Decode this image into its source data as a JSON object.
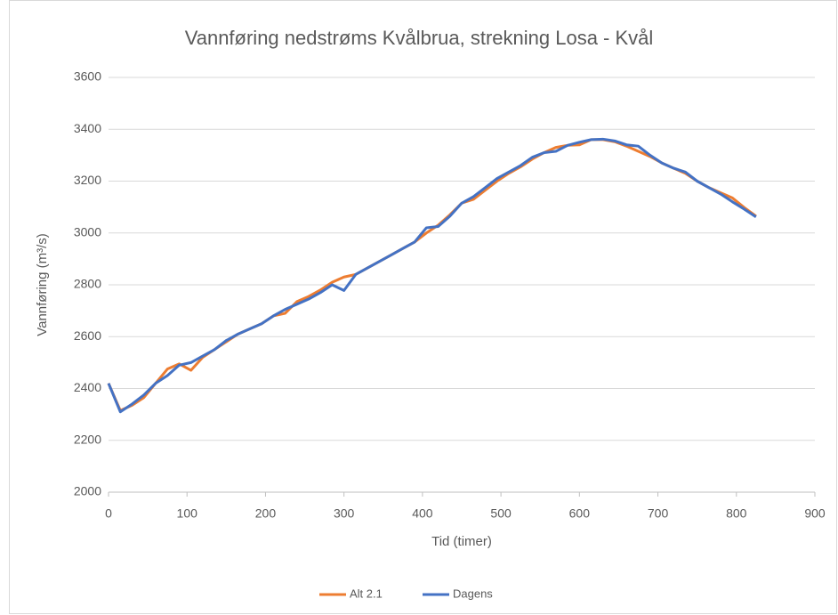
{
  "chart_data": {
    "type": "line",
    "title": "Vannføring nedstrøms Kvålbrua, strekning Losa - Kvål",
    "x_label": "Tid (timer)",
    "y_label": "Vannføring (m³/s)",
    "x": [
      0,
      15,
      30,
      45,
      60,
      75,
      90,
      105,
      120,
      135,
      150,
      165,
      180,
      195,
      210,
      225,
      240,
      255,
      270,
      285,
      300,
      315,
      330,
      345,
      360,
      375,
      390,
      405,
      420,
      435,
      450,
      465,
      480,
      495,
      510,
      525,
      540,
      555,
      570,
      585,
      600,
      615,
      630,
      645,
      660,
      675,
      690,
      705,
      720,
      735,
      750,
      765,
      780,
      795,
      810,
      825
    ],
    "series": [
      {
        "name": "Alt 2.1",
        "color": "#ed7d31",
        "values": [
          2420,
          2315,
          2335,
          2365,
          2420,
          2475,
          2495,
          2470,
          2520,
          2550,
          2580,
          2610,
          2630,
          2650,
          2680,
          2690,
          2735,
          2755,
          2780,
          2810,
          2830,
          2840,
          2865,
          2890,
          2915,
          2940,
          2965,
          3000,
          3030,
          3070,
          3115,
          3130,
          3165,
          3200,
          3230,
          3255,
          3285,
          3310,
          3330,
          3338,
          3340,
          3360,
          3360,
          3352,
          3335,
          3315,
          3295,
          3270,
          3250,
          3230,
          3200,
          3175,
          3155,
          3135,
          3098,
          3065
        ]
      },
      {
        "name": "Dagens",
        "color": "#4472c4",
        "values": [
          2420,
          2310,
          2340,
          2375,
          2420,
          2450,
          2490,
          2500,
          2525,
          2550,
          2585,
          2610,
          2630,
          2650,
          2680,
          2705,
          2725,
          2745,
          2770,
          2800,
          2778,
          2840,
          2865,
          2890,
          2915,
          2940,
          2965,
          3020,
          3025,
          3065,
          3115,
          3140,
          3175,
          3210,
          3235,
          3260,
          3292,
          3310,
          3315,
          3338,
          3350,
          3360,
          3362,
          3355,
          3340,
          3335,
          3300,
          3270,
          3250,
          3235,
          3200,
          3175,
          3150,
          3120,
          3092,
          3062
        ]
      }
    ],
    "xlim": [
      0,
      900
    ],
    "xticks": [
      0,
      100,
      200,
      300,
      400,
      500,
      600,
      700,
      800,
      900
    ],
    "ylim": [
      2000,
      3600
    ],
    "yticks": [
      2000,
      2200,
      2400,
      2600,
      2800,
      3000,
      3200,
      3400,
      3600
    ],
    "grid": true,
    "legend": "bottom"
  }
}
